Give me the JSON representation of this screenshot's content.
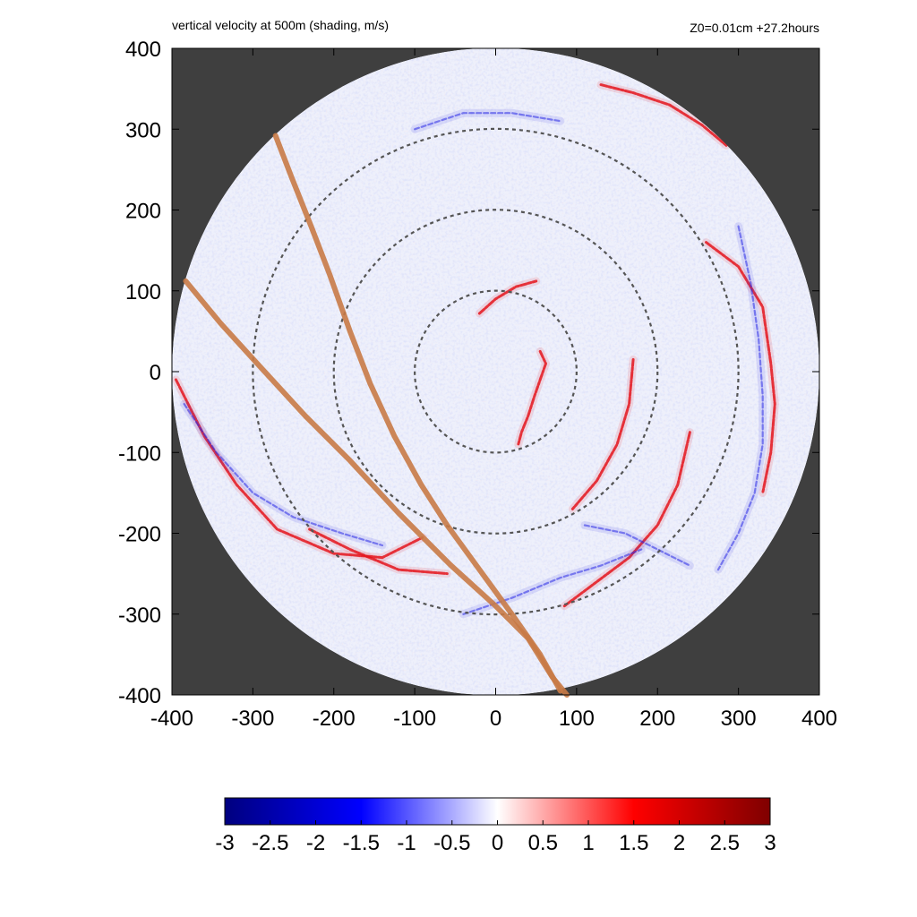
{
  "chart_data": {
    "type": "heatmap",
    "title": "vertical velocity at 500m (shading, m/s)",
    "subtitle": "Z0=0.01cm  +27.2hours",
    "xlabel": "",
    "ylabel": "",
    "xlim": [
      -400,
      400
    ],
    "ylim": [
      -400,
      400
    ],
    "x_ticks": [
      "-400",
      "-300",
      "-200",
      "-100",
      "0",
      "100",
      "200",
      "300",
      "400"
    ],
    "y_ticks": [
      "400",
      "300",
      "200",
      "100",
      "0",
      "-100",
      "-200",
      "-300",
      "-400"
    ],
    "x_tick_values": [
      -400,
      -300,
      -200,
      -100,
      0,
      100,
      200,
      300,
      400
    ],
    "y_tick_values": [
      400,
      300,
      200,
      100,
      0,
      -100,
      -200,
      -300,
      -400
    ],
    "domain_radius": 400,
    "range_rings": [
      100,
      200,
      300
    ],
    "tracks": [
      {
        "name": "track-1",
        "points": [
          [
            -272,
            292
          ],
          [
            -252,
            240
          ],
          [
            -228,
            180
          ],
          [
            -205,
            120
          ],
          [
            -180,
            50
          ],
          [
            -155,
            -15
          ],
          [
            -125,
            -80
          ],
          [
            -92,
            -140
          ],
          [
            -60,
            -190
          ],
          [
            -20,
            -245
          ],
          [
            20,
            -300
          ],
          [
            55,
            -350
          ],
          [
            80,
            -395
          ]
        ]
      },
      {
        "name": "track-2",
        "points": [
          [
            -383,
            112
          ],
          [
            -340,
            60
          ],
          [
            -290,
            5
          ],
          [
            -235,
            -55
          ],
          [
            -180,
            -110
          ],
          [
            -120,
            -175
          ],
          [
            -55,
            -240
          ],
          [
            0,
            -290
          ],
          [
            40,
            -330
          ],
          [
            70,
            -378
          ],
          [
            88,
            -400
          ]
        ]
      }
    ],
    "features": [
      {
        "name": "eyewall-updraft-east",
        "sign": "positive",
        "points": [
          [
            55,
            25
          ],
          [
            62,
            10
          ],
          [
            55,
            -10
          ],
          [
            48,
            -30
          ],
          [
            40,
            -55
          ],
          [
            32,
            -75
          ],
          [
            28,
            -90
          ]
        ]
      },
      {
        "name": "eyewall-updraft-north",
        "sign": "positive",
        "points": [
          [
            -20,
            72
          ],
          [
            0,
            90
          ],
          [
            25,
            105
          ],
          [
            50,
            112
          ]
        ]
      },
      {
        "name": "inner-band-east",
        "sign": "positive",
        "points": [
          [
            170,
            15
          ],
          [
            165,
            -40
          ],
          [
            150,
            -90
          ],
          [
            125,
            -135
          ],
          [
            95,
            -170
          ]
        ]
      },
      {
        "name": "middle-band-southeast",
        "sign": "positive",
        "points": [
          [
            240,
            -75
          ],
          [
            225,
            -140
          ],
          [
            200,
            -190
          ],
          [
            165,
            -230
          ],
          [
            125,
            -260
          ],
          [
            85,
            -290
          ]
        ]
      },
      {
        "name": "outer-band-east",
        "sign": "positive",
        "points": [
          [
            260,
            160
          ],
          [
            300,
            130
          ],
          [
            330,
            80
          ],
          [
            340,
            10
          ],
          [
            345,
            -40
          ],
          [
            340,
            -100
          ],
          [
            330,
            -150
          ]
        ]
      },
      {
        "name": "outer-band-northeast",
        "sign": "positive",
        "points": [
          [
            130,
            355
          ],
          [
            170,
            345
          ],
          [
            215,
            330
          ],
          [
            255,
            305
          ],
          [
            285,
            280
          ]
        ]
      },
      {
        "name": "outer-band-west",
        "sign": "positive",
        "points": [
          [
            -395,
            -10
          ],
          [
            -360,
            -80
          ],
          [
            -320,
            -140
          ],
          [
            -270,
            -195
          ],
          [
            -200,
            -225
          ],
          [
            -140,
            -230
          ],
          [
            -90,
            -205
          ]
        ]
      },
      {
        "name": "outer-band-southwest",
        "sign": "positive",
        "points": [
          [
            -230,
            -195
          ],
          [
            -180,
            -220
          ],
          [
            -120,
            -245
          ],
          [
            -60,
            -250
          ]
        ]
      },
      {
        "name": "west-band",
        "sign": "negative",
        "points": [
          [
            -385,
            -40
          ],
          [
            -345,
            -100
          ],
          [
            -300,
            -150
          ],
          [
            -250,
            -180
          ],
          [
            -190,
            -200
          ],
          [
            -140,
            -215
          ]
        ]
      },
      {
        "name": "south-band",
        "sign": "negative",
        "points": [
          [
            -40,
            -300
          ],
          [
            20,
            -280
          ],
          [
            80,
            -255
          ],
          [
            130,
            -240
          ],
          [
            180,
            -220
          ]
        ]
      },
      {
        "name": "east-ring",
        "sign": "negative",
        "points": [
          [
            300,
            180
          ],
          [
            315,
            110
          ],
          [
            325,
            40
          ],
          [
            330,
            -30
          ],
          [
            330,
            -90
          ],
          [
            320,
            -150
          ],
          [
            300,
            -200
          ],
          [
            275,
            -245
          ]
        ]
      },
      {
        "name": "southeast-band",
        "sign": "negative",
        "points": [
          [
            110,
            -190
          ],
          [
            160,
            -200
          ],
          [
            200,
            -220
          ],
          [
            240,
            -240
          ]
        ]
      },
      {
        "name": "north-faint",
        "sign": "negative",
        "points": [
          [
            -100,
            300
          ],
          [
            -40,
            320
          ],
          [
            20,
            320
          ],
          [
            80,
            310
          ]
        ]
      }
    ],
    "colorbar": {
      "min": -3,
      "max": 3,
      "ticks": [
        "-3",
        "-2.5",
        "-2",
        "-1.5",
        "-1",
        "-0.5",
        "0",
        "0.5",
        "1",
        "1.5",
        "2",
        "2.5",
        "3"
      ],
      "tick_values": [
        -3,
        -2.5,
        -2,
        -1.5,
        -1,
        -0.5,
        0,
        0.5,
        1,
        1.5,
        2,
        2.5,
        3
      ],
      "colors": [
        "#00007f",
        "#0000ff",
        "#ffffff",
        "#ff0000",
        "#7f0000"
      ]
    },
    "colors": {
      "outside": "#3f3f3f",
      "track": "#c87a46",
      "ring": "#555555",
      "positive": "#e4141c",
      "negative": "#2828e6",
      "background_tint": "#eef0fb"
    }
  }
}
